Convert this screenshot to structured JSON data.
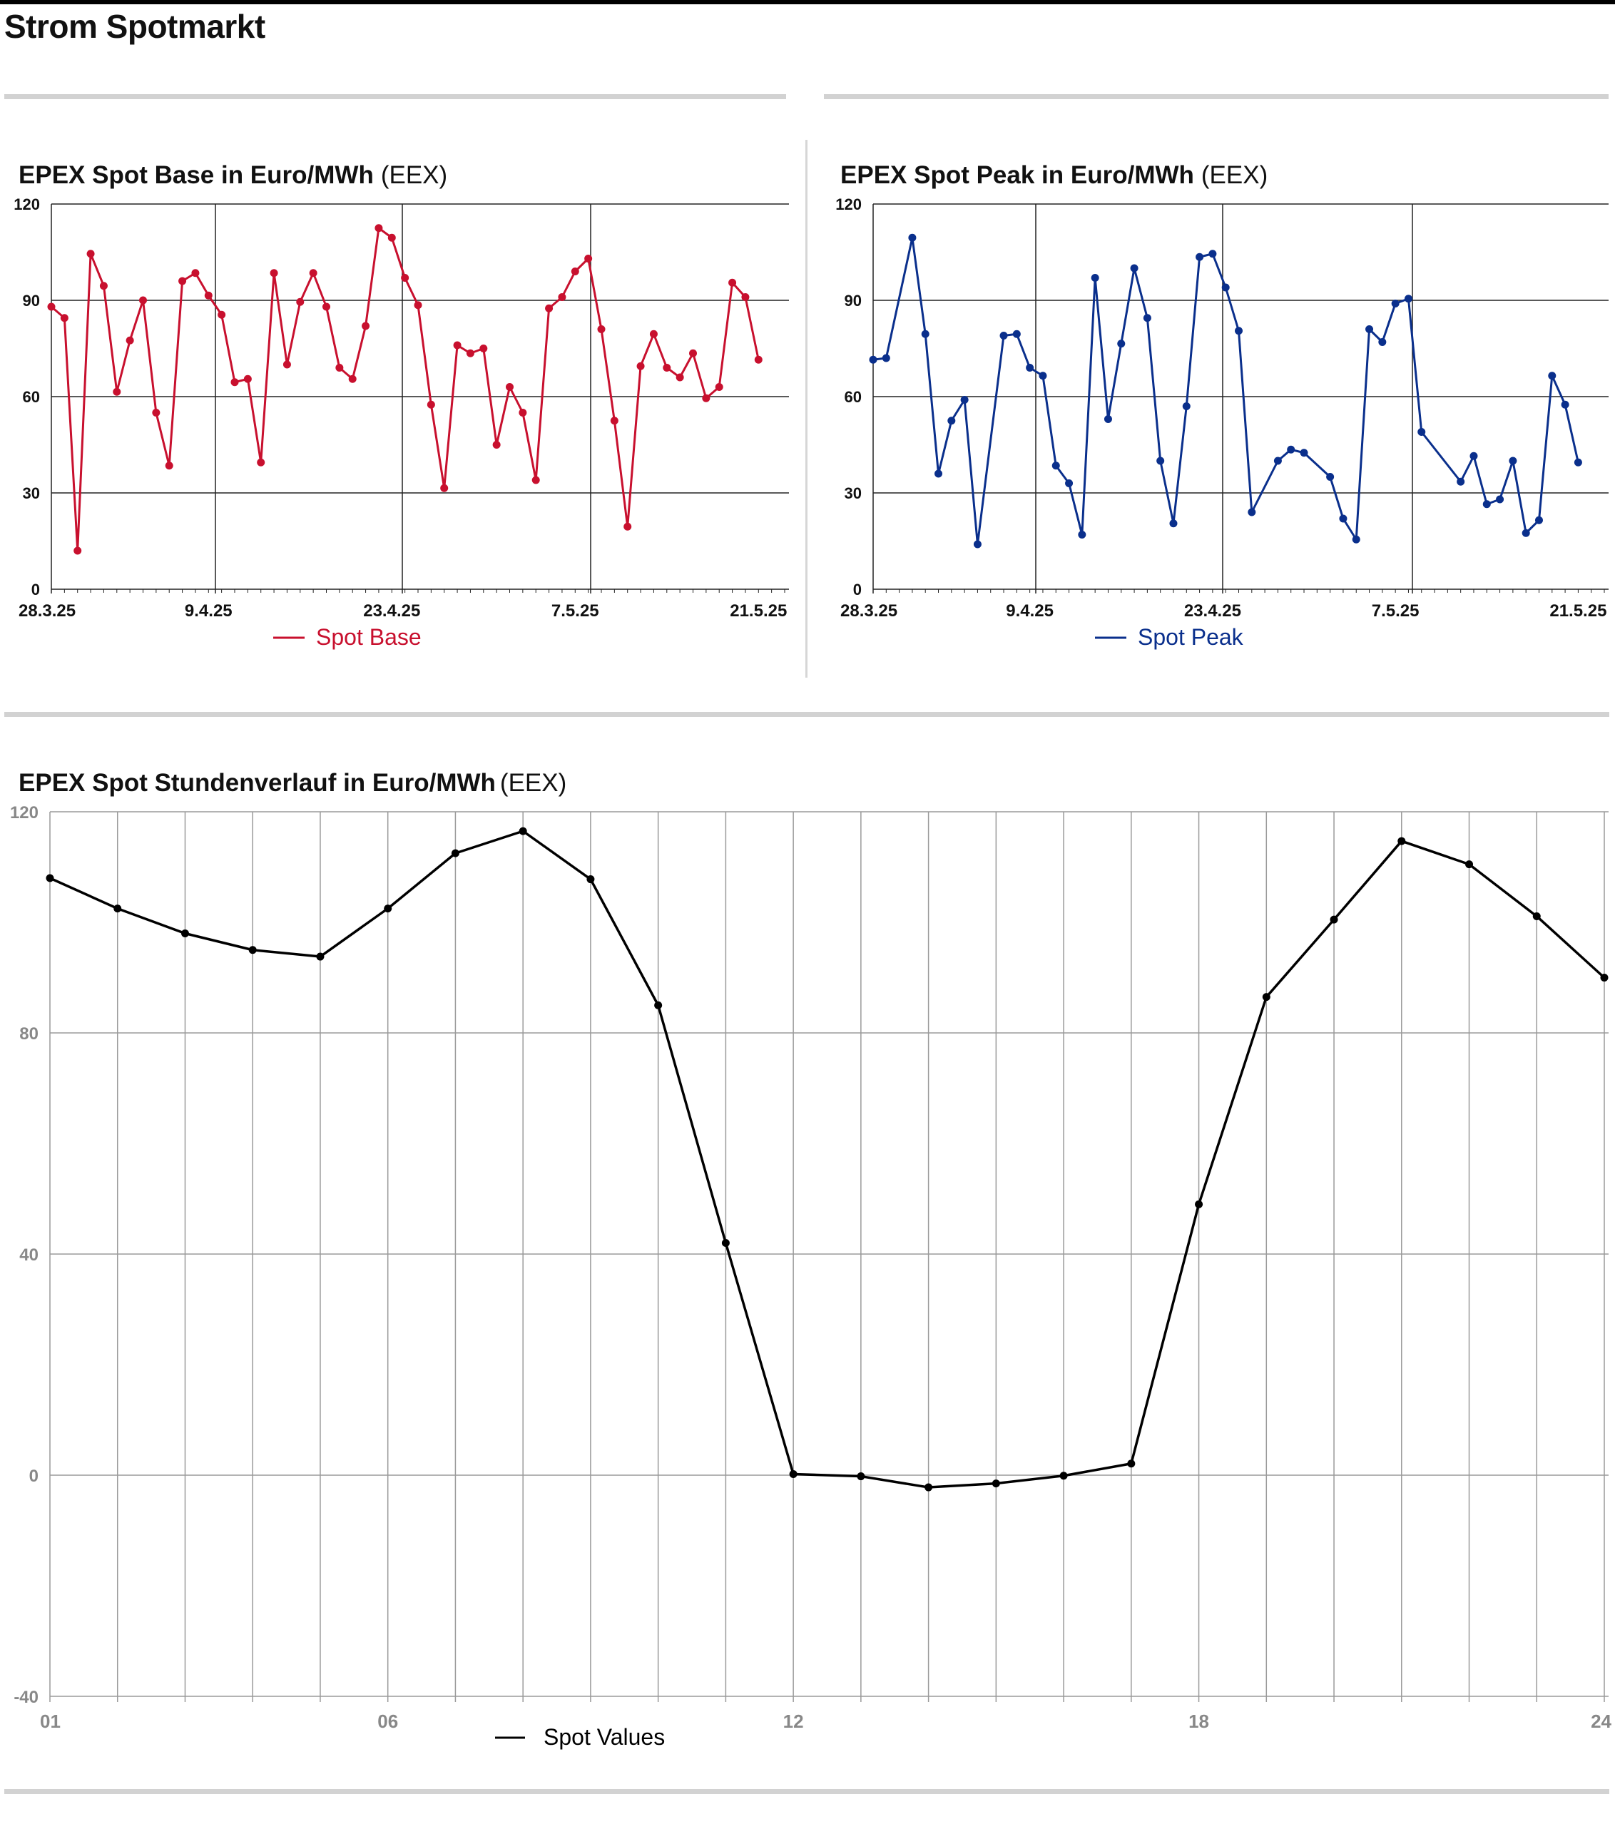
{
  "page": {
    "title": "Strom Spotmarkt"
  },
  "charts": {
    "base": {
      "title": "EPEX Spot Base in Euro/MWh",
      "source": "(EEX)"
    },
    "peak": {
      "title": "EPEX Spot Peak in Euro/MWh",
      "source": "(EEX)"
    },
    "hourly": {
      "title": "EPEX Spot Stundenverlauf in Euro/MWh",
      "source": "(EEX)"
    }
  },
  "chart_data": [
    {
      "id": "base",
      "type": "line",
      "title": "EPEX Spot Base in Euro/MWh (EEX)",
      "x_start": "2025-03-28",
      "x_end": "2025-05-23",
      "x_tick_labels": [
        {
          "label": "28.3.25",
          "date": "2025-03-28"
        },
        {
          "label": "9.4.25",
          "date": "2025-04-09"
        },
        {
          "label": "23.4.25",
          "date": "2025-04-23"
        },
        {
          "label": "7.5.25",
          "date": "2025-05-07"
        },
        {
          "label": "21.5.25",
          "date": "2025-05-21"
        }
      ],
      "ylim": [
        0,
        120
      ],
      "yticks": [
        0,
        30,
        60,
        90,
        120
      ],
      "grid": true,
      "legend": "bottom-center",
      "color": "#c8102e",
      "series": [
        {
          "name": "Spot Base",
          "points": [
            [
              "2025-03-28",
              88
            ],
            [
              "2025-03-29",
              84.5
            ],
            [
              "2025-03-30",
              12
            ],
            [
              "2025-03-31",
              104.5
            ],
            [
              "2025-04-01",
              94.5
            ],
            [
              "2025-04-02",
              61.5
            ],
            [
              "2025-04-03",
              77.5
            ],
            [
              "2025-04-04",
              90
            ],
            [
              "2025-04-05",
              55
            ],
            [
              "2025-04-06",
              38.5
            ],
            [
              "2025-04-07",
              96
            ],
            [
              "2025-04-08",
              98.5
            ],
            [
              "2025-04-09",
              91.5
            ],
            [
              "2025-04-10",
              85.5
            ],
            [
              "2025-04-11",
              64.5
            ],
            [
              "2025-04-12",
              65.5
            ],
            [
              "2025-04-13",
              39.5
            ],
            [
              "2025-04-14",
              98.5
            ],
            [
              "2025-04-15",
              70
            ],
            [
              "2025-04-16",
              89.5
            ],
            [
              "2025-04-17",
              98.5
            ],
            [
              "2025-04-18",
              88
            ],
            [
              "2025-04-19",
              69
            ],
            [
              "2025-04-20",
              65.5
            ],
            [
              "2025-04-21",
              82
            ],
            [
              "2025-04-22",
              112.5
            ],
            [
              "2025-04-23",
              109.5
            ],
            [
              "2025-04-24",
              97
            ],
            [
              "2025-04-25",
              88.5
            ],
            [
              "2025-04-26",
              57.5
            ],
            [
              "2025-04-27",
              31.5
            ],
            [
              "2025-04-28",
              76
            ],
            [
              "2025-04-29",
              73.5
            ],
            [
              "2025-04-30",
              75
            ],
            [
              "2025-05-01",
              45
            ],
            [
              "2025-05-02",
              63
            ],
            [
              "2025-05-03",
              55
            ],
            [
              "2025-05-04",
              34
            ],
            [
              "2025-05-05",
              87.5
            ],
            [
              "2025-05-06",
              91
            ],
            [
              "2025-05-07",
              99
            ],
            [
              "2025-05-08",
              103
            ],
            [
              "2025-05-09",
              81
            ],
            [
              "2025-05-10",
              52.5
            ],
            [
              "2025-05-11",
              19.5
            ],
            [
              "2025-05-12",
              69.5
            ],
            [
              "2025-05-13",
              79.5
            ],
            [
              "2025-05-14",
              69
            ],
            [
              "2025-05-15",
              66
            ],
            [
              "2025-05-16",
              73.5
            ],
            [
              "2025-05-17",
              59.5
            ],
            [
              "2025-05-18",
              63
            ],
            [
              "2025-05-19",
              95.5
            ],
            [
              "2025-05-20",
              91
            ],
            [
              "2025-05-21",
              71.5
            ]
          ]
        }
      ]
    },
    {
      "id": "peak",
      "type": "line",
      "title": "EPEX Spot Peak in Euro/MWh (EEX)",
      "x_start": "2025-03-28",
      "x_end": "2025-05-23",
      "x_tick_labels": [
        {
          "label": "28.3.25",
          "date": "2025-03-28"
        },
        {
          "label": "9.4.25",
          "date": "2025-04-09"
        },
        {
          "label": "23.4.25",
          "date": "2025-04-23"
        },
        {
          "label": "7.5.25",
          "date": "2025-05-07"
        },
        {
          "label": "21.5.25",
          "date": "2025-05-21"
        }
      ],
      "ylim": [
        0,
        120
      ],
      "yticks": [
        0,
        30,
        60,
        90,
        120
      ],
      "grid": true,
      "legend": "bottom-center",
      "color": "#0a2f8c",
      "series": [
        {
          "name": "Spot Peak",
          "points": [
            [
              "2025-03-28",
              71.5
            ],
            [
              "2025-03-29",
              72
            ],
            [
              "2025-03-31",
              109.5
            ],
            [
              "2025-04-01",
              79.5
            ],
            [
              "2025-04-02",
              36
            ],
            [
              "2025-04-03",
              52.5
            ],
            [
              "2025-04-04",
              59
            ],
            [
              "2025-04-05",
              14
            ],
            [
              "2025-04-07",
              79
            ],
            [
              "2025-04-08",
              79.5
            ],
            [
              "2025-04-09",
              69
            ],
            [
              "2025-04-10",
              66.5
            ],
            [
              "2025-04-11",
              38.5
            ],
            [
              "2025-04-12",
              33
            ],
            [
              "2025-04-13",
              17
            ],
            [
              "2025-04-14",
              97
            ],
            [
              "2025-04-15",
              53
            ],
            [
              "2025-04-16",
              76.5
            ],
            [
              "2025-04-17",
              100
            ],
            [
              "2025-04-18",
              84.5
            ],
            [
              "2025-04-19",
              40
            ],
            [
              "2025-04-20",
              20.5
            ],
            [
              "2025-04-21",
              57
            ],
            [
              "2025-04-22",
              103.5
            ],
            [
              "2025-04-23",
              104.5
            ],
            [
              "2025-04-24",
              94
            ],
            [
              "2025-04-25",
              80.5
            ],
            [
              "2025-04-26",
              24
            ],
            [
              "2025-04-28",
              40
            ],
            [
              "2025-04-29",
              43.5
            ],
            [
              "2025-04-30",
              42.5
            ],
            [
              "2025-05-02",
              35
            ],
            [
              "2025-05-03",
              22
            ],
            [
              "2025-05-04",
              15.5
            ],
            [
              "2025-05-05",
              81
            ],
            [
              "2025-05-06",
              77
            ],
            [
              "2025-05-07",
              89
            ],
            [
              "2025-05-08",
              90.5
            ],
            [
              "2025-05-09",
              49
            ],
            [
              "2025-05-12",
              33.5
            ],
            [
              "2025-05-13",
              41.5
            ],
            [
              "2025-05-14",
              26.5
            ],
            [
              "2025-05-15",
              28
            ],
            [
              "2025-05-16",
              40
            ],
            [
              "2025-05-17",
              17.5
            ],
            [
              "2025-05-18",
              21.5
            ],
            [
              "2025-05-19",
              66.5
            ],
            [
              "2025-05-20",
              57.5
            ],
            [
              "2025-05-21",
              39.5
            ]
          ]
        }
      ]
    },
    {
      "id": "hourly",
      "type": "line",
      "title": "EPEX Spot Stundenverlauf in Euro/MWh (EEX)",
      "x": [
        1,
        2,
        3,
        4,
        5,
        6,
        7,
        8,
        9,
        10,
        11,
        12,
        13,
        14,
        15,
        16,
        17,
        18,
        19,
        20,
        21,
        22,
        23,
        24
      ],
      "xlim": [
        1,
        24
      ],
      "x_tick_labels": [
        {
          "label": "01",
          "value": 1
        },
        {
          "label": "06",
          "value": 6
        },
        {
          "label": "12",
          "value": 12
        },
        {
          "label": "18",
          "value": 18
        },
        {
          "label": "24",
          "value": 24
        }
      ],
      "ylim": [
        -40,
        120
      ],
      "yticks": [
        -40,
        0,
        40,
        80,
        120
      ],
      "grid": true,
      "legend": "bottom-center",
      "color": "#000000",
      "series": [
        {
          "name": "Spot Values",
          "values": [
            108,
            102.5,
            98,
            95,
            93.8,
            102.5,
            112.5,
            116.5,
            107.8,
            85,
            42,
            0.2,
            -0.2,
            -2.2,
            -1.5,
            -0.1,
            2.1,
            49,
            86.5,
            100.5,
            114.7,
            110.5,
            101.1,
            90
          ]
        }
      ]
    }
  ]
}
